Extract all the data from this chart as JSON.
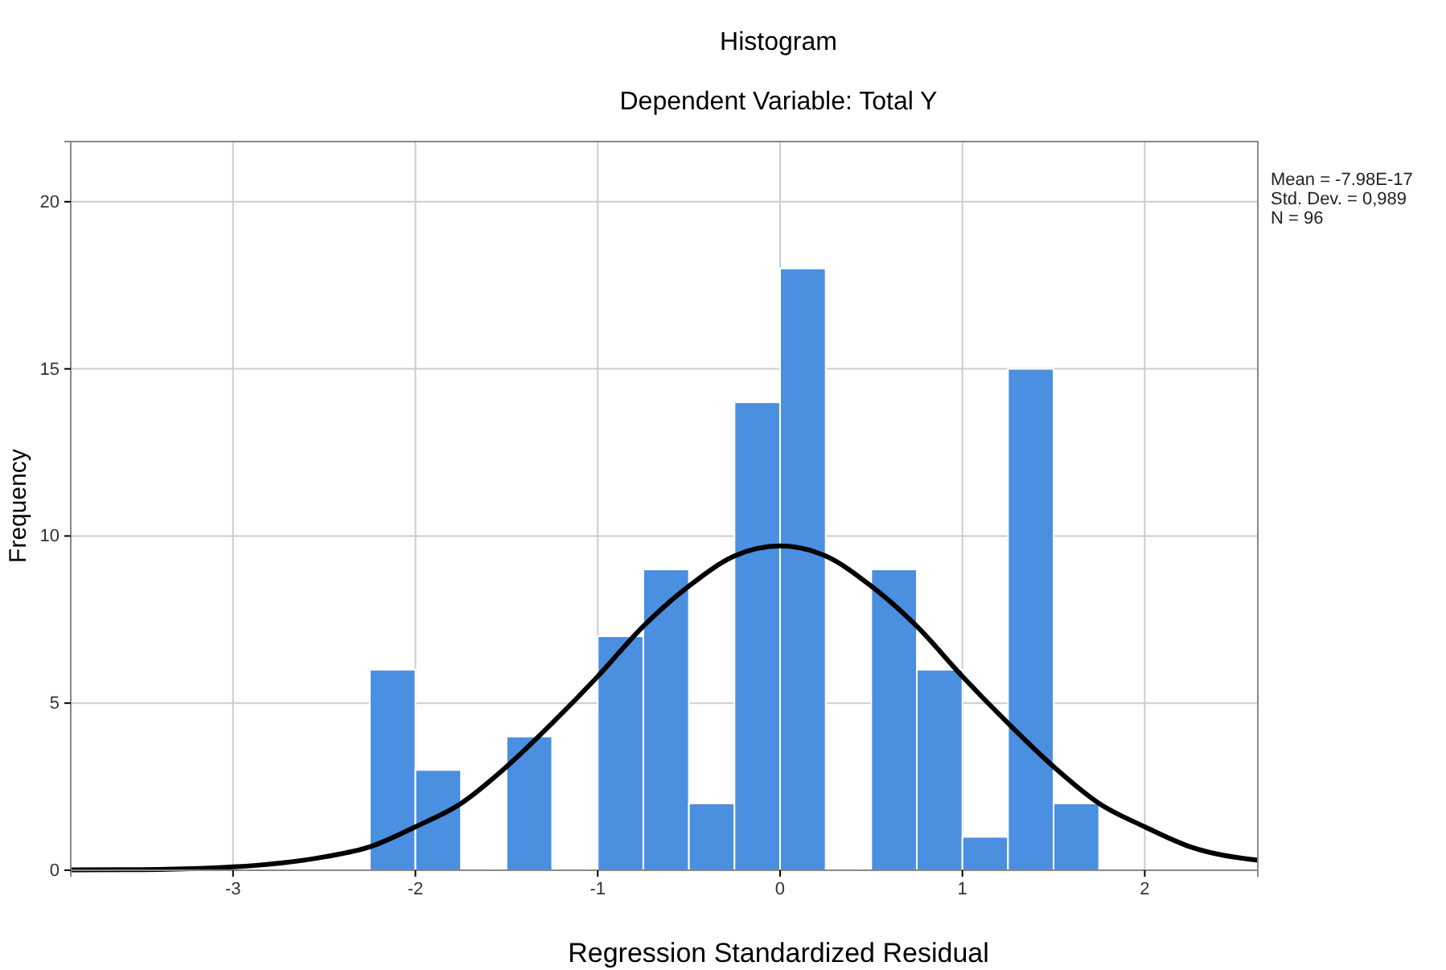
{
  "chart_data": {
    "type": "histogram",
    "title": "Histogram",
    "subtitle": "Dependent Variable: Total Y",
    "xlabel": "Regression Standardized Residual",
    "ylabel": "Frequency",
    "bins": [
      -2.25,
      -2,
      -1.75,
      -1.5,
      -1.25,
      -1,
      -0.75,
      -0.5,
      -0.25,
      0,
      0.25,
      0.5,
      0.75,
      1,
      1.25,
      1.5,
      1.75
    ],
    "values": [
      6,
      3,
      0,
      4,
      0,
      7,
      9,
      2,
      14,
      18,
      0,
      9,
      6,
      1,
      15,
      2
    ],
    "color": "#4a8fe0",
    "series": [
      {
        "type": "line",
        "color": "#000000",
        "x": [
          -3.89,
          -3.5,
          -3,
          -2.5,
          -2.25,
          -2,
          -1.75,
          -1.5,
          -1.25,
          -1,
          -0.75,
          -0.5,
          -0.25,
          0,
          0.25,
          0.5,
          0.75,
          1,
          1.25,
          1.5,
          1.75,
          2,
          2.25,
          2.62
        ],
        "values": [
          0.01,
          0.02,
          0.1,
          0.4,
          0.7,
          1.3,
          2.0,
          3.1,
          4.4,
          5.8,
          7.3,
          8.5,
          9.4,
          9.7,
          9.4,
          8.5,
          7.3,
          5.8,
          4.4,
          3.1,
          2.0,
          1.3,
          0.7,
          0.3
        ]
      }
    ],
    "xlim": [
      -3.89,
      2.62
    ],
    "xticks": [
      -3,
      -2,
      -1,
      0,
      1,
      2
    ],
    "ylim": [
      0,
      21.8
    ],
    "yticks": [
      0,
      5,
      10,
      15,
      20
    ],
    "grid": true,
    "annotations": [
      "Mean = -7.98E-17",
      "Std. Dev. = 0,989",
      "N = 96"
    ]
  }
}
